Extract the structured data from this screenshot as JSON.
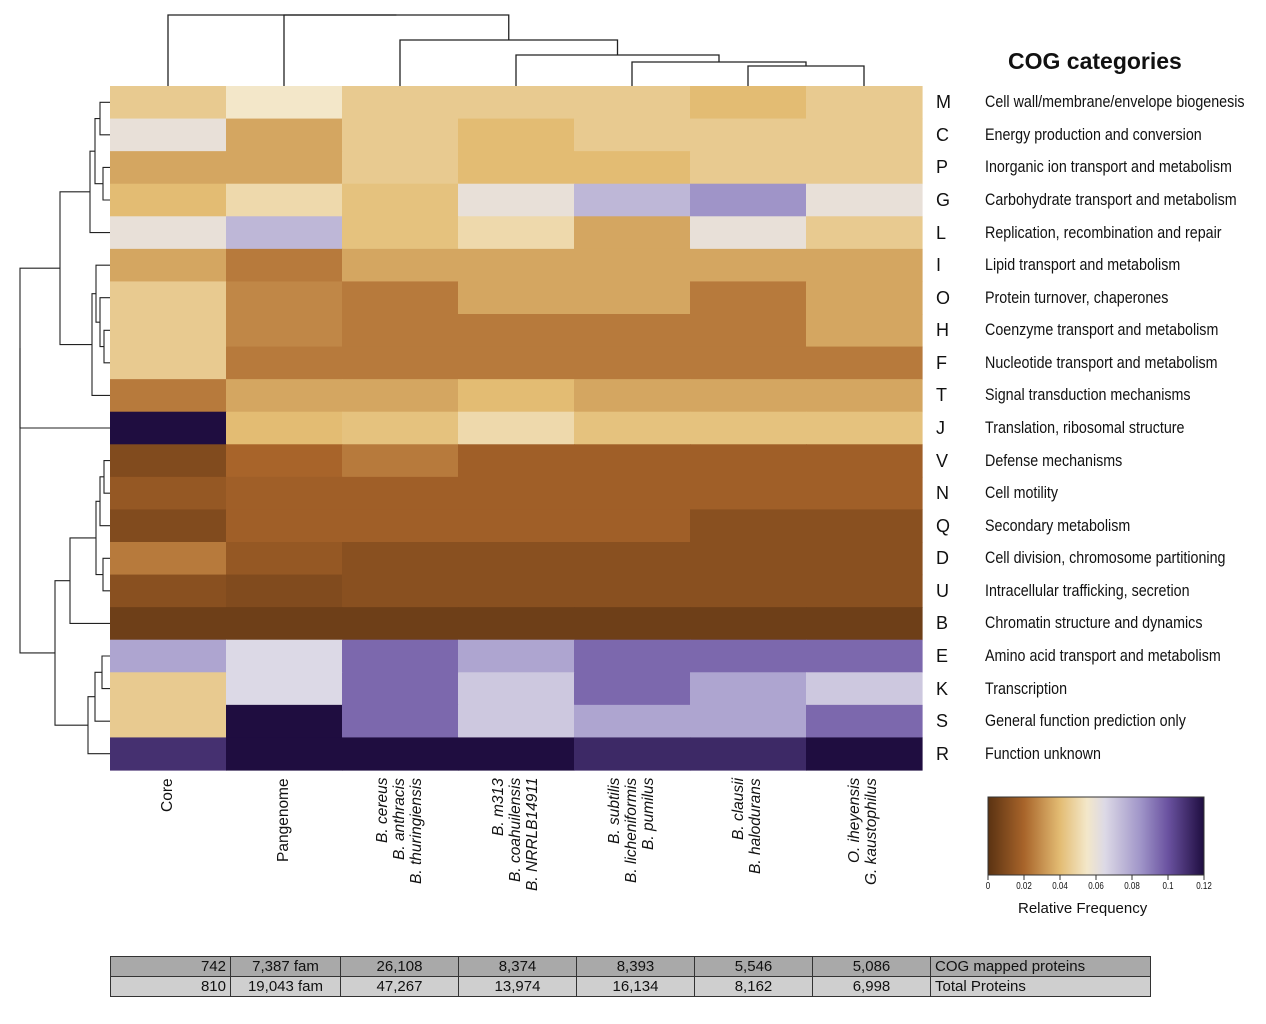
{
  "chart_data": {
    "type": "heatmap",
    "title": "COG categories",
    "columns": [
      {
        "id": "core",
        "lines": [
          "Core"
        ],
        "italic": false
      },
      {
        "id": "pangenome",
        "lines": [
          "Pangenome"
        ],
        "italic": false
      },
      {
        "id": "g3",
        "lines": [
          "B. cereus",
          "B. anthracis",
          "B. thuringiensis"
        ],
        "italic": true
      },
      {
        "id": "g4",
        "lines": [
          "B. m313",
          "B. coahuilensis",
          "B. NRRLB14911"
        ],
        "italic": true
      },
      {
        "id": "g5",
        "lines": [
          "B. subtilis",
          "B. licheniformis",
          "B. pumilus"
        ],
        "italic": true
      },
      {
        "id": "g6",
        "lines": [
          "B. clausii",
          "B. halodurans"
        ],
        "italic": true
      },
      {
        "id": "g7",
        "lines": [
          "O. iheyensis",
          "G. kaustophilus"
        ],
        "italic": true
      }
    ],
    "rows": [
      {
        "code": "M",
        "name": "Cell wall/membrane/envelope biogenesis",
        "values": [
          0.045,
          0.055,
          0.045,
          0.045,
          0.045,
          0.04,
          0.045
        ]
      },
      {
        "code": "C",
        "name": "Energy production and conversion",
        "values": [
          0.06,
          0.035,
          0.045,
          0.04,
          0.045,
          0.045,
          0.045
        ]
      },
      {
        "code": "P",
        "name": "Inorganic ion transport and metabolism",
        "values": [
          0.035,
          0.035,
          0.045,
          0.04,
          0.04,
          0.045,
          0.045
        ]
      },
      {
        "code": "G",
        "name": "Carbohydrate transport and metabolism",
        "values": [
          0.04,
          0.05,
          0.042,
          0.06,
          0.075,
          0.085,
          0.06
        ]
      },
      {
        "code": "L",
        "name": "Replication, recombination and repair",
        "values": [
          0.06,
          0.075,
          0.042,
          0.05,
          0.035,
          0.06,
          0.045
        ]
      },
      {
        "code": "I",
        "name": "Lipid transport and metabolism",
        "values": [
          0.035,
          0.025,
          0.035,
          0.035,
          0.035,
          0.035,
          0.035
        ]
      },
      {
        "code": "O",
        "name": "Protein turnover, chaperones",
        "values": [
          0.045,
          0.028,
          0.025,
          0.035,
          0.035,
          0.025,
          0.035
        ]
      },
      {
        "code": "H",
        "name": "Coenzyme transport and metabolism",
        "values": [
          0.045,
          0.028,
          0.025,
          0.025,
          0.025,
          0.025,
          0.035
        ]
      },
      {
        "code": "F",
        "name": "Nucleotide transport and metabolism",
        "values": [
          0.045,
          0.025,
          0.025,
          0.025,
          0.025,
          0.025,
          0.025
        ]
      },
      {
        "code": "T",
        "name": "Signal transduction mechanisms",
        "values": [
          0.025,
          0.035,
          0.035,
          0.04,
          0.035,
          0.035,
          0.035
        ]
      },
      {
        "code": "J",
        "name": "Translation, ribosomal structure",
        "values": [
          0.12,
          0.04,
          0.042,
          0.05,
          0.042,
          0.042,
          0.042
        ]
      },
      {
        "code": "V",
        "name": "Defense mechanisms",
        "values": [
          0.01,
          0.02,
          0.025,
          0.018,
          0.018,
          0.018,
          0.018
        ]
      },
      {
        "code": "N",
        "name": "Cell motility",
        "values": [
          0.015,
          0.018,
          0.018,
          0.018,
          0.018,
          0.018,
          0.018
        ]
      },
      {
        "code": "Q",
        "name": "Secondary metabolism",
        "values": [
          0.01,
          0.018,
          0.018,
          0.018,
          0.018,
          0.012,
          0.012
        ]
      },
      {
        "code": "D",
        "name": "Cell division, chromosome partitioning",
        "values": [
          0.025,
          0.015,
          0.012,
          0.012,
          0.012,
          0.012,
          0.012
        ]
      },
      {
        "code": "U",
        "name": "Intracellular trafficking, secretion",
        "values": [
          0.012,
          0.01,
          0.012,
          0.012,
          0.012,
          0.012,
          0.012
        ]
      },
      {
        "code": "B",
        "name": "Chromatin structure and dynamics",
        "values": [
          0.005,
          0.005,
          0.005,
          0.005,
          0.005,
          0.005,
          0.005
        ]
      },
      {
        "code": "E",
        "name": "Amino acid transport and metabolism",
        "values": [
          0.08,
          0.065,
          0.095,
          0.08,
          0.095,
          0.095,
          0.095
        ]
      },
      {
        "code": "K",
        "name": "Transcription",
        "values": [
          0.045,
          0.065,
          0.095,
          0.07,
          0.095,
          0.08,
          0.07
        ]
      },
      {
        "code": "S",
        "name": "General function prediction only",
        "values": [
          0.045,
          0.125,
          0.095,
          0.07,
          0.08,
          0.08,
          0.095
        ]
      },
      {
        "code": "R",
        "name": "Function unknown",
        "values": [
          0.11,
          0.13,
          0.128,
          0.12,
          0.112,
          0.112,
          0.122
        ]
      }
    ],
    "colorbar": {
      "label": "Relative Frequency",
      "ticks": [
        "0",
        "0.02",
        "0.04",
        "0.06",
        "0.08",
        "0.1",
        "0.12"
      ],
      "range": [
        0,
        0.12
      ],
      "stops": [
        {
          "v": 0.0,
          "c": "#5a3212"
        },
        {
          "v": 0.02,
          "c": "#a8642a"
        },
        {
          "v": 0.04,
          "c": "#e3bc73"
        },
        {
          "v": 0.055,
          "c": "#f3e7c9"
        },
        {
          "v": 0.065,
          "c": "#dcd9e6"
        },
        {
          "v": 0.085,
          "c": "#9f94c8"
        },
        {
          "v": 0.1,
          "c": "#6a52a0"
        },
        {
          "v": 0.12,
          "c": "#1f0d40"
        }
      ]
    }
  },
  "table": {
    "rows": [
      {
        "cells": [
          "742",
          "7,387 fam",
          "26,108",
          "8,374",
          "8,393",
          "5,546",
          "5,086"
        ],
        "label": "COG mapped proteins"
      },
      {
        "cells": [
          "810",
          "19,043 fam",
          "47,267",
          "13,974",
          "16,134",
          "8,162",
          "6,998"
        ],
        "label": "Total Proteins"
      }
    ]
  }
}
